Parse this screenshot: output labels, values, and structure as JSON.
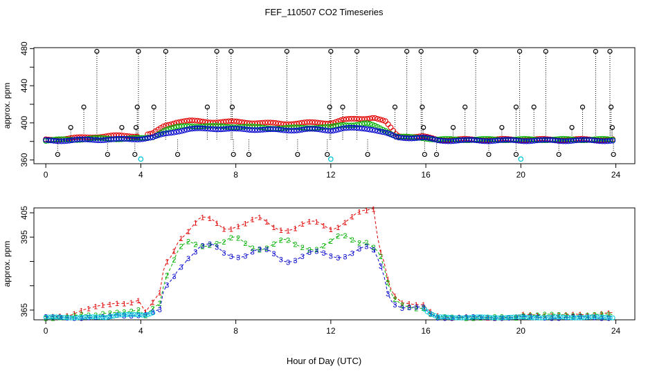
{
  "figure": {
    "title": "FEF_110507  CO2 Timeseries",
    "xlabel": "Hour of Day (UTC)"
  },
  "colors": {
    "black": "#000000",
    "red": "#e00000",
    "green": "#00b000",
    "blue": "#0000cc",
    "cyan": "#00c8d8"
  },
  "chart_data": [
    {
      "type": "scatter",
      "ylabel": "approx. ppm",
      "xlim": [
        -0.5,
        24.8
      ],
      "ylim": [
        356,
        481
      ],
      "xticks": [
        0,
        4,
        8,
        12,
        16,
        20,
        24
      ],
      "yticks": [
        360,
        400,
        440,
        480
      ],
      "yticks_minor": [
        380,
        420,
        460
      ],
      "spikes": {
        "up_480": [
          2.15,
          3.9,
          5.05,
          7.2,
          7.8,
          10.15,
          12.0,
          13.1,
          15.2,
          15.8,
          18.1,
          19.95,
          21.05,
          23.15,
          23.75
        ],
        "up_417": [
          1.6,
          3.85,
          4.55,
          6.8,
          7.85,
          11.95,
          12.5,
          14.7,
          15.85,
          17.65,
          19.8,
          20.55,
          22.6,
          23.8
        ],
        "up_395": [
          1.05,
          3.2,
          3.8,
          15.9,
          17.15,
          19.2,
          22.15,
          23.85
        ],
        "down_366": [
          0.5,
          2.6,
          3.75,
          5.55,
          7.9,
          8.55,
          10.6,
          11.85,
          13.55,
          15.95,
          16.45,
          18.65,
          19.8,
          21.6,
          23.9
        ]
      },
      "cyan_points": [
        [
          4.0,
          361
        ],
        [
          12.0,
          361
        ],
        [
          20.0,
          361
        ]
      ],
      "series": [
        {
          "name": "1",
          "color": "red",
          "x": [
            0,
            1,
            2,
            3,
            4,
            4.5,
            5,
            5.5,
            6,
            7,
            8,
            9,
            10,
            11,
            12,
            12.5,
            13,
            13.5,
            13.8,
            14.3,
            14.8,
            15.5,
            15.9,
            16.5,
            20,
            24
          ],
          "y": [
            382,
            383,
            385,
            386,
            386,
            388,
            397,
            401,
            402,
            401,
            401,
            400,
            399,
            400,
            400,
            403,
            404,
            405,
            406,
            401,
            386,
            385,
            385,
            382,
            382,
            382
          ]
        },
        {
          "name": "2",
          "color": "green",
          "x": [
            0,
            1,
            2,
            3,
            4,
            4.5,
            5,
            5.5,
            6,
            7,
            8,
            9,
            10,
            11,
            12,
            12.5,
            13,
            13.5,
            13.8,
            14.3,
            14.8,
            15.5,
            15.9,
            16.5,
            20,
            24
          ],
          "y": [
            381,
            382,
            383,
            383,
            383,
            385,
            392,
            395,
            397,
            396,
            396,
            395,
            394,
            395,
            395,
            398,
            398,
            399,
            397,
            392,
            385,
            384,
            384,
            382,
            382,
            382
          ]
        },
        {
          "name": "3",
          "color": "blue",
          "x": [
            0,
            1,
            2,
            3,
            4,
            4.5,
            5,
            5.5,
            6,
            7,
            8,
            9,
            10,
            11,
            12,
            12.5,
            13,
            13.5,
            13.8,
            14.3,
            14.8,
            15.5,
            15.9,
            16.5,
            20,
            24
          ],
          "y": [
            381,
            381,
            382,
            382,
            383,
            384,
            388,
            391,
            393,
            394,
            393,
            393,
            392,
            393,
            392,
            394,
            394,
            394,
            393,
            389,
            384,
            384,
            384,
            381,
            381,
            381
          ]
        }
      ]
    },
    {
      "type": "line",
      "ylabel": "approx. ppm",
      "xlim": [
        -0.5,
        24.8
      ],
      "ylim": [
        361,
        407
      ],
      "xticks": [
        0,
        4,
        8,
        12,
        16,
        20,
        24
      ],
      "yticks": [
        365,
        395,
        405
      ],
      "yticks_minor": [
        375,
        385
      ],
      "series": [
        {
          "name": "1",
          "color": "red",
          "x": [
            0,
            0.5,
            1,
            1.5,
            2,
            2.5,
            3,
            3.5,
            3.9,
            4.2,
            4.5,
            4.8,
            5.0,
            5.3,
            5.6,
            6,
            6.5,
            7,
            7.5,
            8,
            8.5,
            9,
            9.5,
            10,
            10.5,
            11,
            11.5,
            12,
            12.5,
            13,
            13.5,
            13.8,
            14.0,
            14.2,
            14.4,
            14.6,
            15,
            15.5,
            15.9,
            16.1,
            16.5,
            17,
            18,
            19,
            19.8,
            20,
            20.5,
            21,
            22,
            23,
            23.5,
            23.9
          ],
          "y": [
            362,
            362.5,
            363,
            365,
            366,
            367,
            368,
            368,
            369,
            364,
            368,
            372,
            384,
            389,
            396,
            398,
            401,
            401,
            400,
            401,
            400,
            401,
            400,
            400,
            399,
            399,
            400,
            400,
            402,
            403,
            404,
            406,
            393,
            387,
            378,
            372,
            368,
            367,
            367,
            365,
            363,
            362,
            362,
            362,
            362,
            363,
            363,
            363,
            363,
            363,
            364,
            364
          ]
        },
        {
          "name": "2",
          "color": "green",
          "x": [
            0,
            0.5,
            1,
            1.5,
            2,
            2.5,
            3,
            3.5,
            3.9,
            4.2,
            4.5,
            4.8,
            5.0,
            5.3,
            5.6,
            6,
            6.5,
            7,
            7.5,
            8,
            8.5,
            9,
            9.5,
            10,
            10.5,
            11,
            11.5,
            12,
            12.5,
            13,
            13.5,
            13.8,
            14.0,
            14.2,
            14.4,
            14.6,
            15,
            15.5,
            15.9,
            16.1,
            16.5,
            17,
            18,
            19,
            19.8,
            20,
            20.5,
            21,
            22,
            23,
            23.5,
            23.9
          ],
          "y": [
            362,
            362,
            362,
            363,
            363,
            364,
            364,
            364,
            365,
            363,
            366,
            368,
            378,
            382,
            388,
            392,
            393,
            394,
            392,
            393,
            392,
            392,
            392,
            392,
            391,
            392,
            392,
            392,
            394,
            394,
            395,
            392,
            389,
            384,
            376,
            370,
            367,
            366,
            366,
            364,
            362,
            362,
            362,
            362,
            362,
            363,
            363,
            363,
            363,
            363,
            363,
            363
          ]
        },
        {
          "name": "3",
          "color": "blue",
          "x": [
            0,
            0.5,
            1,
            1.5,
            2,
            2.5,
            3,
            3.5,
            3.9,
            4.2,
            4.5,
            4.8,
            5.0,
            5.3,
            5.6,
            6,
            6.5,
            7,
            7.5,
            8,
            8.5,
            9,
            9.5,
            10,
            10.5,
            11,
            11.5,
            12,
            12.5,
            13,
            13.5,
            13.8,
            14.0,
            14.2,
            14.4,
            14.6,
            15,
            15.5,
            15.9,
            16.1,
            16.5,
            17,
            18,
            19,
            19.8,
            20,
            20.5,
            21,
            22,
            23,
            23.5,
            23.9
          ],
          "y": [
            362,
            362,
            362,
            362,
            362,
            362,
            363,
            363,
            363,
            363,
            364,
            365,
            373,
            378,
            384,
            388,
            390,
            390,
            389,
            389,
            388,
            388,
            388,
            387,
            387,
            387,
            387,
            388,
            389,
            389,
            389,
            388,
            385,
            381,
            372,
            368,
            366,
            366,
            366,
            364,
            362,
            362,
            362,
            362,
            362,
            362,
            362,
            362,
            362,
            362,
            362,
            362
          ]
        }
      ]
    }
  ]
}
